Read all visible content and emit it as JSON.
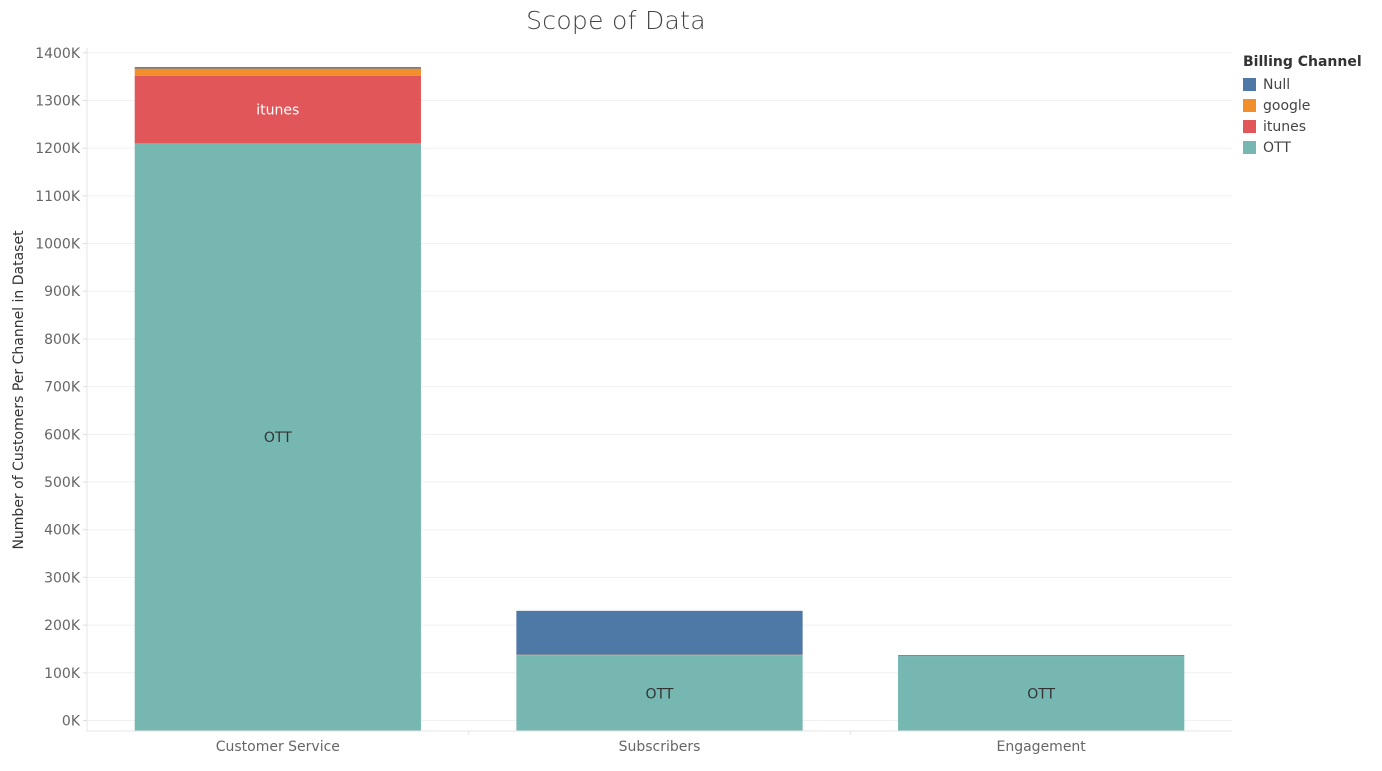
{
  "chart_data": {
    "type": "bar",
    "stacked": true,
    "title": "Scope of Data",
    "xlabel": "",
    "ylabel": "Number of Customers Per Channel in Dataset",
    "categories": [
      "Customer Service",
      "Subscribers",
      "Engagement"
    ],
    "series": [
      {
        "name": "OTT",
        "color": "#76b7b2",
        "values": [
          1210000,
          136000,
          135000
        ]
      },
      {
        "name": "itunes",
        "color": "#e15759",
        "values": [
          142000,
          0,
          0
        ]
      },
      {
        "name": "google",
        "color": "#f28e2b",
        "values": [
          15000,
          2000,
          0
        ]
      },
      {
        "name": "Null",
        "color": "#4e79a7",
        "values": [
          3000,
          92000,
          2000
        ]
      }
    ],
    "bar_labels": [
      {
        "category": "Customer Service",
        "series": "OTT",
        "text": "OTT"
      },
      {
        "category": "Customer Service",
        "series": "itunes",
        "text": "itunes"
      },
      {
        "category": "Subscribers",
        "series": "OTT",
        "text": "OTT"
      },
      {
        "category": "Engagement",
        "series": "OTT",
        "text": "OTT"
      }
    ],
    "yticks": [
      0,
      100000,
      200000,
      300000,
      400000,
      500000,
      600000,
      700000,
      800000,
      900000,
      1000000,
      1100000,
      1200000,
      1300000,
      1400000
    ],
    "ytick_labels": [
      "0K",
      "100K",
      "200K",
      "300K",
      "400K",
      "500K",
      "600K",
      "700K",
      "800K",
      "900K",
      "1000K",
      "1100K",
      "1200K",
      "1300K",
      "1400K"
    ],
    "ylim": [
      -22000,
      1410000
    ],
    "grid": true,
    "legend_title": "Billing Channel",
    "legend_order": [
      "Null",
      "google",
      "itunes",
      "OTT"
    ],
    "legend_position": "right"
  }
}
